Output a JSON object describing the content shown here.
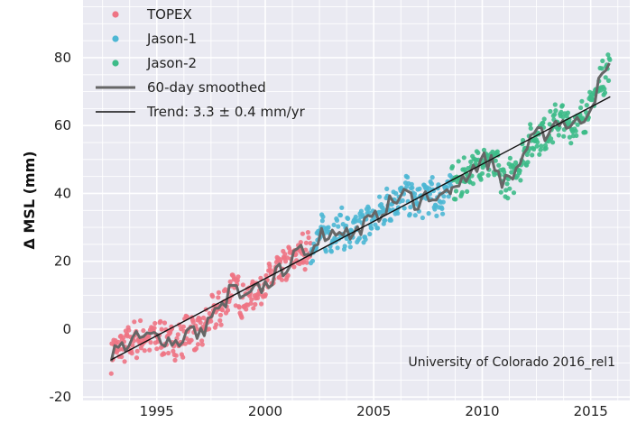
{
  "chart_data": {
    "type": "scatter",
    "title": "",
    "xlabel": "",
    "ylabel": "Δ MSL (mm)",
    "xlim": [
      1991.6,
      2016.8
    ],
    "ylim": [
      -21,
      97
    ],
    "x_ticks": [
      1995,
      2000,
      2005,
      2010,
      2015
    ],
    "y_ticks": [
      -20,
      0,
      20,
      40,
      60,
      80
    ],
    "grid": true,
    "legend_position": "top-left",
    "annotation": "University of Colorado 2016_rel1",
    "series": [
      {
        "name": "TOPEX",
        "kind": "points",
        "color": "#ee7484",
        "x_range": [
          1992.9,
          2002.1
        ],
        "anchors_x": [
          1992.9,
          1994.0,
          1995.0,
          1996.0,
          1996.5,
          1997.0,
          1997.5,
          1998.0,
          1998.5,
          1999.0,
          1999.5,
          2000.0,
          2000.5,
          2001.0,
          2001.5,
          2002.1
        ],
        "anchors_y": [
          -7,
          -3,
          -2,
          -4,
          0,
          -2,
          4,
          6,
          13,
          8,
          11,
          13,
          16,
          19,
          22,
          24
        ]
      },
      {
        "name": "Jason-1",
        "kind": "points",
        "color": "#4db7d4",
        "x_range": [
          2002.1,
          2008.6
        ],
        "anchors_x": [
          2002.1,
          2002.5,
          2003.0,
          2003.5,
          2004.0,
          2004.5,
          2005.0,
          2005.5,
          2006.0,
          2006.5,
          2007.0,
          2007.5,
          2008.0,
          2008.6
        ],
        "anchors_y": [
          24,
          28,
          28,
          30,
          27,
          31,
          32,
          36,
          38,
          40,
          37,
          40,
          38,
          42
        ]
      },
      {
        "name": "Jason-2",
        "kind": "points",
        "color": "#3dbb88",
        "x_range": [
          2008.6,
          2015.9
        ],
        "anchors_x": [
          2008.6,
          2009.0,
          2009.5,
          2010.0,
          2010.5,
          2011.0,
          2011.5,
          2012.0,
          2012.5,
          2013.0,
          2013.5,
          2014.0,
          2014.5,
          2015.0,
          2015.5,
          2015.9
        ],
        "anchors_y": [
          42,
          44,
          47,
          50,
          49,
          43,
          46,
          53,
          57,
          58,
          62,
          60,
          61,
          66,
          74,
          77
        ]
      },
      {
        "name": "60-day smoothed",
        "kind": "line",
        "color": "#666666"
      },
      {
        "name": "Trend: 3.3 ± 0.4 mm/yr",
        "kind": "trend",
        "color": "#111111",
        "x": [
          1992.9,
          2015.9
        ],
        "y": [
          -9,
          68.5
        ]
      }
    ]
  }
}
